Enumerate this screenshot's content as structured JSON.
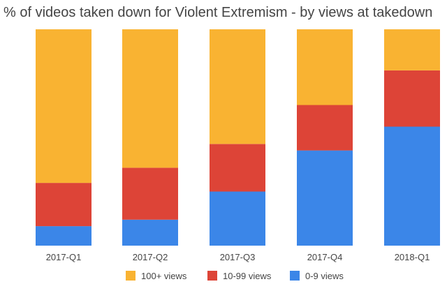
{
  "chart_data": {
    "type": "stacked-bar",
    "title": "% of videos taken down for Violent Extremism - by views at takedown",
    "xlabel": "",
    "ylabel": "",
    "ylim": [
      0,
      100
    ],
    "grid": false,
    "legend_position": "bottom-center",
    "categories": [
      "2017-Q1",
      "2017-Q2",
      "2017-Q3",
      "2017-Q4",
      "2018-Q1"
    ],
    "series": [
      {
        "name": "0-9 views",
        "color": "#3b86e8",
        "values": [
          9,
          12,
          25,
          44,
          55
        ]
      },
      {
        "name": "10-99 views",
        "color": "#dd4437",
        "values": [
          20,
          24,
          22,
          21,
          26
        ]
      },
      {
        "name": "100+ views",
        "color": "#f9b332",
        "values": [
          71,
          64,
          53,
          35,
          19
        ]
      }
    ],
    "legend": [
      "100+ views",
      "10-99 views",
      "0-9 views"
    ]
  }
}
